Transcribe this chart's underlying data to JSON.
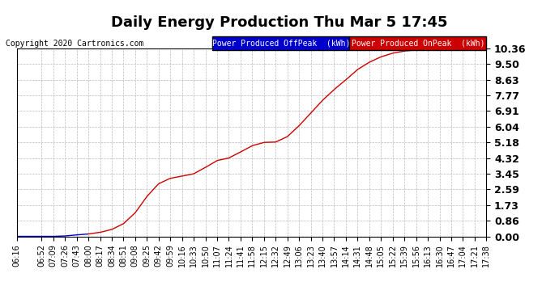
{
  "title": "Daily Energy Production Thu Mar 5 17:45",
  "copyright": "Copyright 2020 Cartronics.com",
  "legend_offpeak": "Power Produced OffPeak  (kWh)",
  "legend_onpeak": "Power Produced OnPeak  (kWh)",
  "offpeak_color": "#0000cc",
  "onpeak_color": "#cc0000",
  "bg_color": "#ffffff",
  "plot_bg_color": "#ffffff",
  "grid_color": "#bbbbbb",
  "yticks": [
    0.0,
    0.86,
    1.73,
    2.59,
    3.45,
    4.32,
    5.18,
    6.04,
    6.91,
    7.77,
    8.63,
    9.5,
    10.36
  ],
  "ylim": [
    0.0,
    10.36
  ],
  "xtick_labels": [
    "06:16",
    "06:52",
    "07:09",
    "07:26",
    "07:43",
    "08:00",
    "08:17",
    "08:34",
    "08:51",
    "09:08",
    "09:25",
    "09:42",
    "09:59",
    "10:16",
    "10:33",
    "10:50",
    "11:07",
    "11:24",
    "11:41",
    "11:58",
    "12:15",
    "12:32",
    "12:49",
    "13:06",
    "13:23",
    "13:40",
    "13:57",
    "14:14",
    "14:31",
    "14:48",
    "15:05",
    "15:22",
    "15:39",
    "15:56",
    "16:13",
    "16:30",
    "16:47",
    "17:04",
    "17:21",
    "17:38"
  ],
  "offpeak_end_time": "08:00",
  "title_fontsize": 13,
  "axis_fontsize": 7,
  "ytick_fontsize": 9,
  "legend_fontsize": 7,
  "copyright_fontsize": 7
}
